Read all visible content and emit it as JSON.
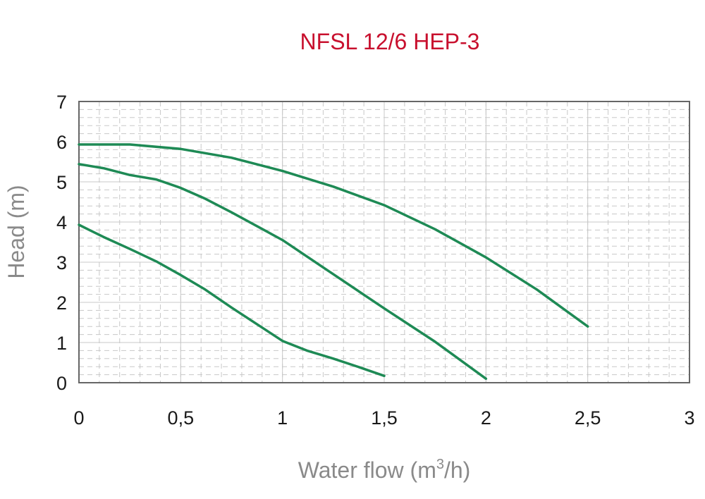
{
  "colors": {
    "title": "#c8102e",
    "axis_label": "#8a8a8a",
    "tick_label": "#1a1a1a",
    "plot_frame": "#666666",
    "grid": "#c8c8c8",
    "series": "#1e8a55"
  },
  "chart_data": {
    "type": "line",
    "title": "NFSL 12/6 HEP-3",
    "xlabel": "Water flow (m",
    "xlabel_sup": "3",
    "xlabel_end": "/h)",
    "ylabel": "Head (m)",
    "xlim": [
      0,
      3
    ],
    "ylim": [
      0,
      7
    ],
    "x_ticks": [
      0,
      0.5,
      1,
      1.5,
      2,
      2.5,
      3
    ],
    "x_tick_labels": [
      "0",
      "0,5",
      "1",
      "1,5",
      "2",
      "2,5",
      "3"
    ],
    "y_ticks": [
      0,
      1,
      2,
      3,
      4,
      5,
      6,
      7
    ],
    "y_tick_labels": [
      "0",
      "1",
      "2",
      "3",
      "4",
      "5",
      "6",
      "7"
    ],
    "grid": true,
    "series": [
      {
        "x": [
          0,
          0.25,
          0.5,
          0.75,
          1.0,
          1.25,
          1.5,
          1.75,
          2.0,
          2.25,
          2.5
        ],
        "y": [
          5.93,
          5.93,
          5.82,
          5.6,
          5.27,
          4.88,
          4.42,
          3.82,
          3.12,
          2.32,
          1.4
        ]
      },
      {
        "x": [
          0,
          0.12,
          0.25,
          0.38,
          0.5,
          0.62,
          0.75,
          1.0,
          1.25,
          1.5,
          1.75,
          2.0
        ],
        "y": [
          5.44,
          5.34,
          5.17,
          5.06,
          4.85,
          4.58,
          4.24,
          3.55,
          2.7,
          1.85,
          1.02,
          0.1
        ]
      },
      {
        "x": [
          0,
          0.12,
          0.25,
          0.38,
          0.5,
          0.62,
          0.75,
          1.0,
          1.12,
          1.25,
          1.38,
          1.5
        ],
        "y": [
          3.93,
          3.63,
          3.33,
          3.02,
          2.68,
          2.32,
          1.87,
          1.04,
          0.8,
          0.6,
          0.38,
          0.17
        ]
      }
    ]
  }
}
